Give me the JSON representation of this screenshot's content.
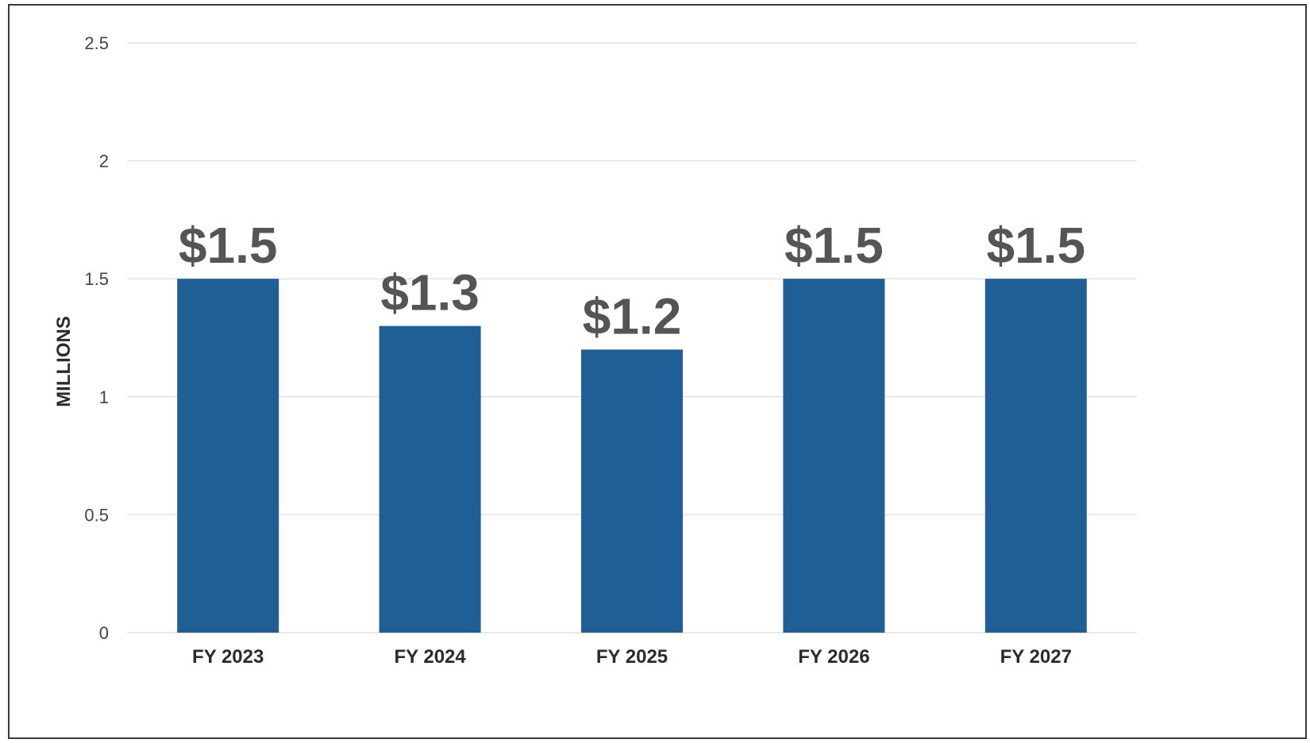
{
  "chart_data": {
    "type": "bar",
    "categories": [
      "FY 2023",
      "FY 2024",
      "FY 2025",
      "FY 2026",
      "FY 2027"
    ],
    "values": [
      1.5,
      1.3,
      1.2,
      1.5,
      1.5
    ],
    "data_labels": [
      "$1.5",
      "$1.3",
      "$1.2",
      "$1.5",
      "$1.5"
    ],
    "title": "",
    "xlabel": "",
    "ylabel": "MILLIONS",
    "ylim": [
      0,
      2.5
    ],
    "yticks": [
      0,
      0.5,
      1,
      1.5,
      2,
      2.5
    ],
    "ytick_labels": [
      "0",
      "0.5",
      "1",
      "1.5",
      "2",
      "2.5"
    ],
    "grid": true,
    "legend": "none",
    "colors": {
      "bar": "#1f5f96",
      "grid": "#e2e2e2",
      "data_label": "#555555"
    }
  }
}
